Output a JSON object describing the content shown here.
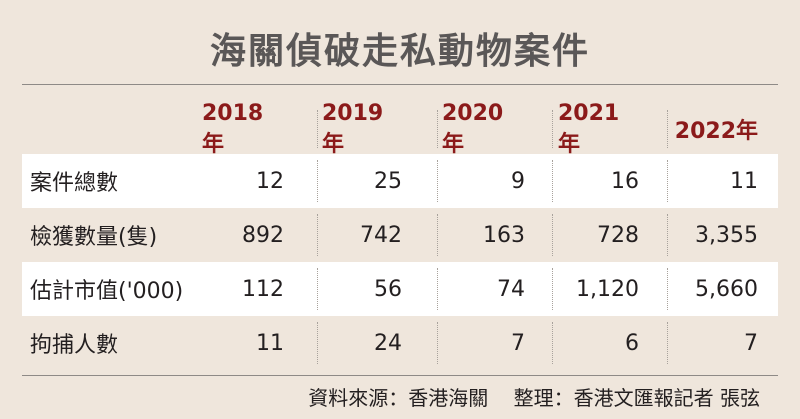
{
  "title": "海關偵破走私動物案件",
  "table": {
    "years": [
      "2018年",
      "2019年",
      "2020年",
      "2021年",
      "2022年"
    ],
    "rows": [
      {
        "label": "案件總數",
        "values": [
          "12",
          "25",
          "9",
          "16",
          "11"
        ]
      },
      {
        "label": "檢獲數量(隻)",
        "values": [
          "892",
          "742",
          "163",
          "728",
          "3,355"
        ]
      },
      {
        "label": "估計市值('000)",
        "values": [
          "112",
          "56",
          "74",
          "1,120",
          "5,660"
        ]
      },
      {
        "label": "拘捕人數",
        "values": [
          "11",
          "24",
          "7",
          "6",
          "7"
        ]
      }
    ]
  },
  "footer": {
    "source": "資料來源：香港海關",
    "compiled": "整理：香港文匯報記者 張弦"
  },
  "colors": {
    "background": "#efe6dc",
    "year_header": "#8b1a1a",
    "title": "#5a5757",
    "row_highlight": "#ffffff"
  }
}
